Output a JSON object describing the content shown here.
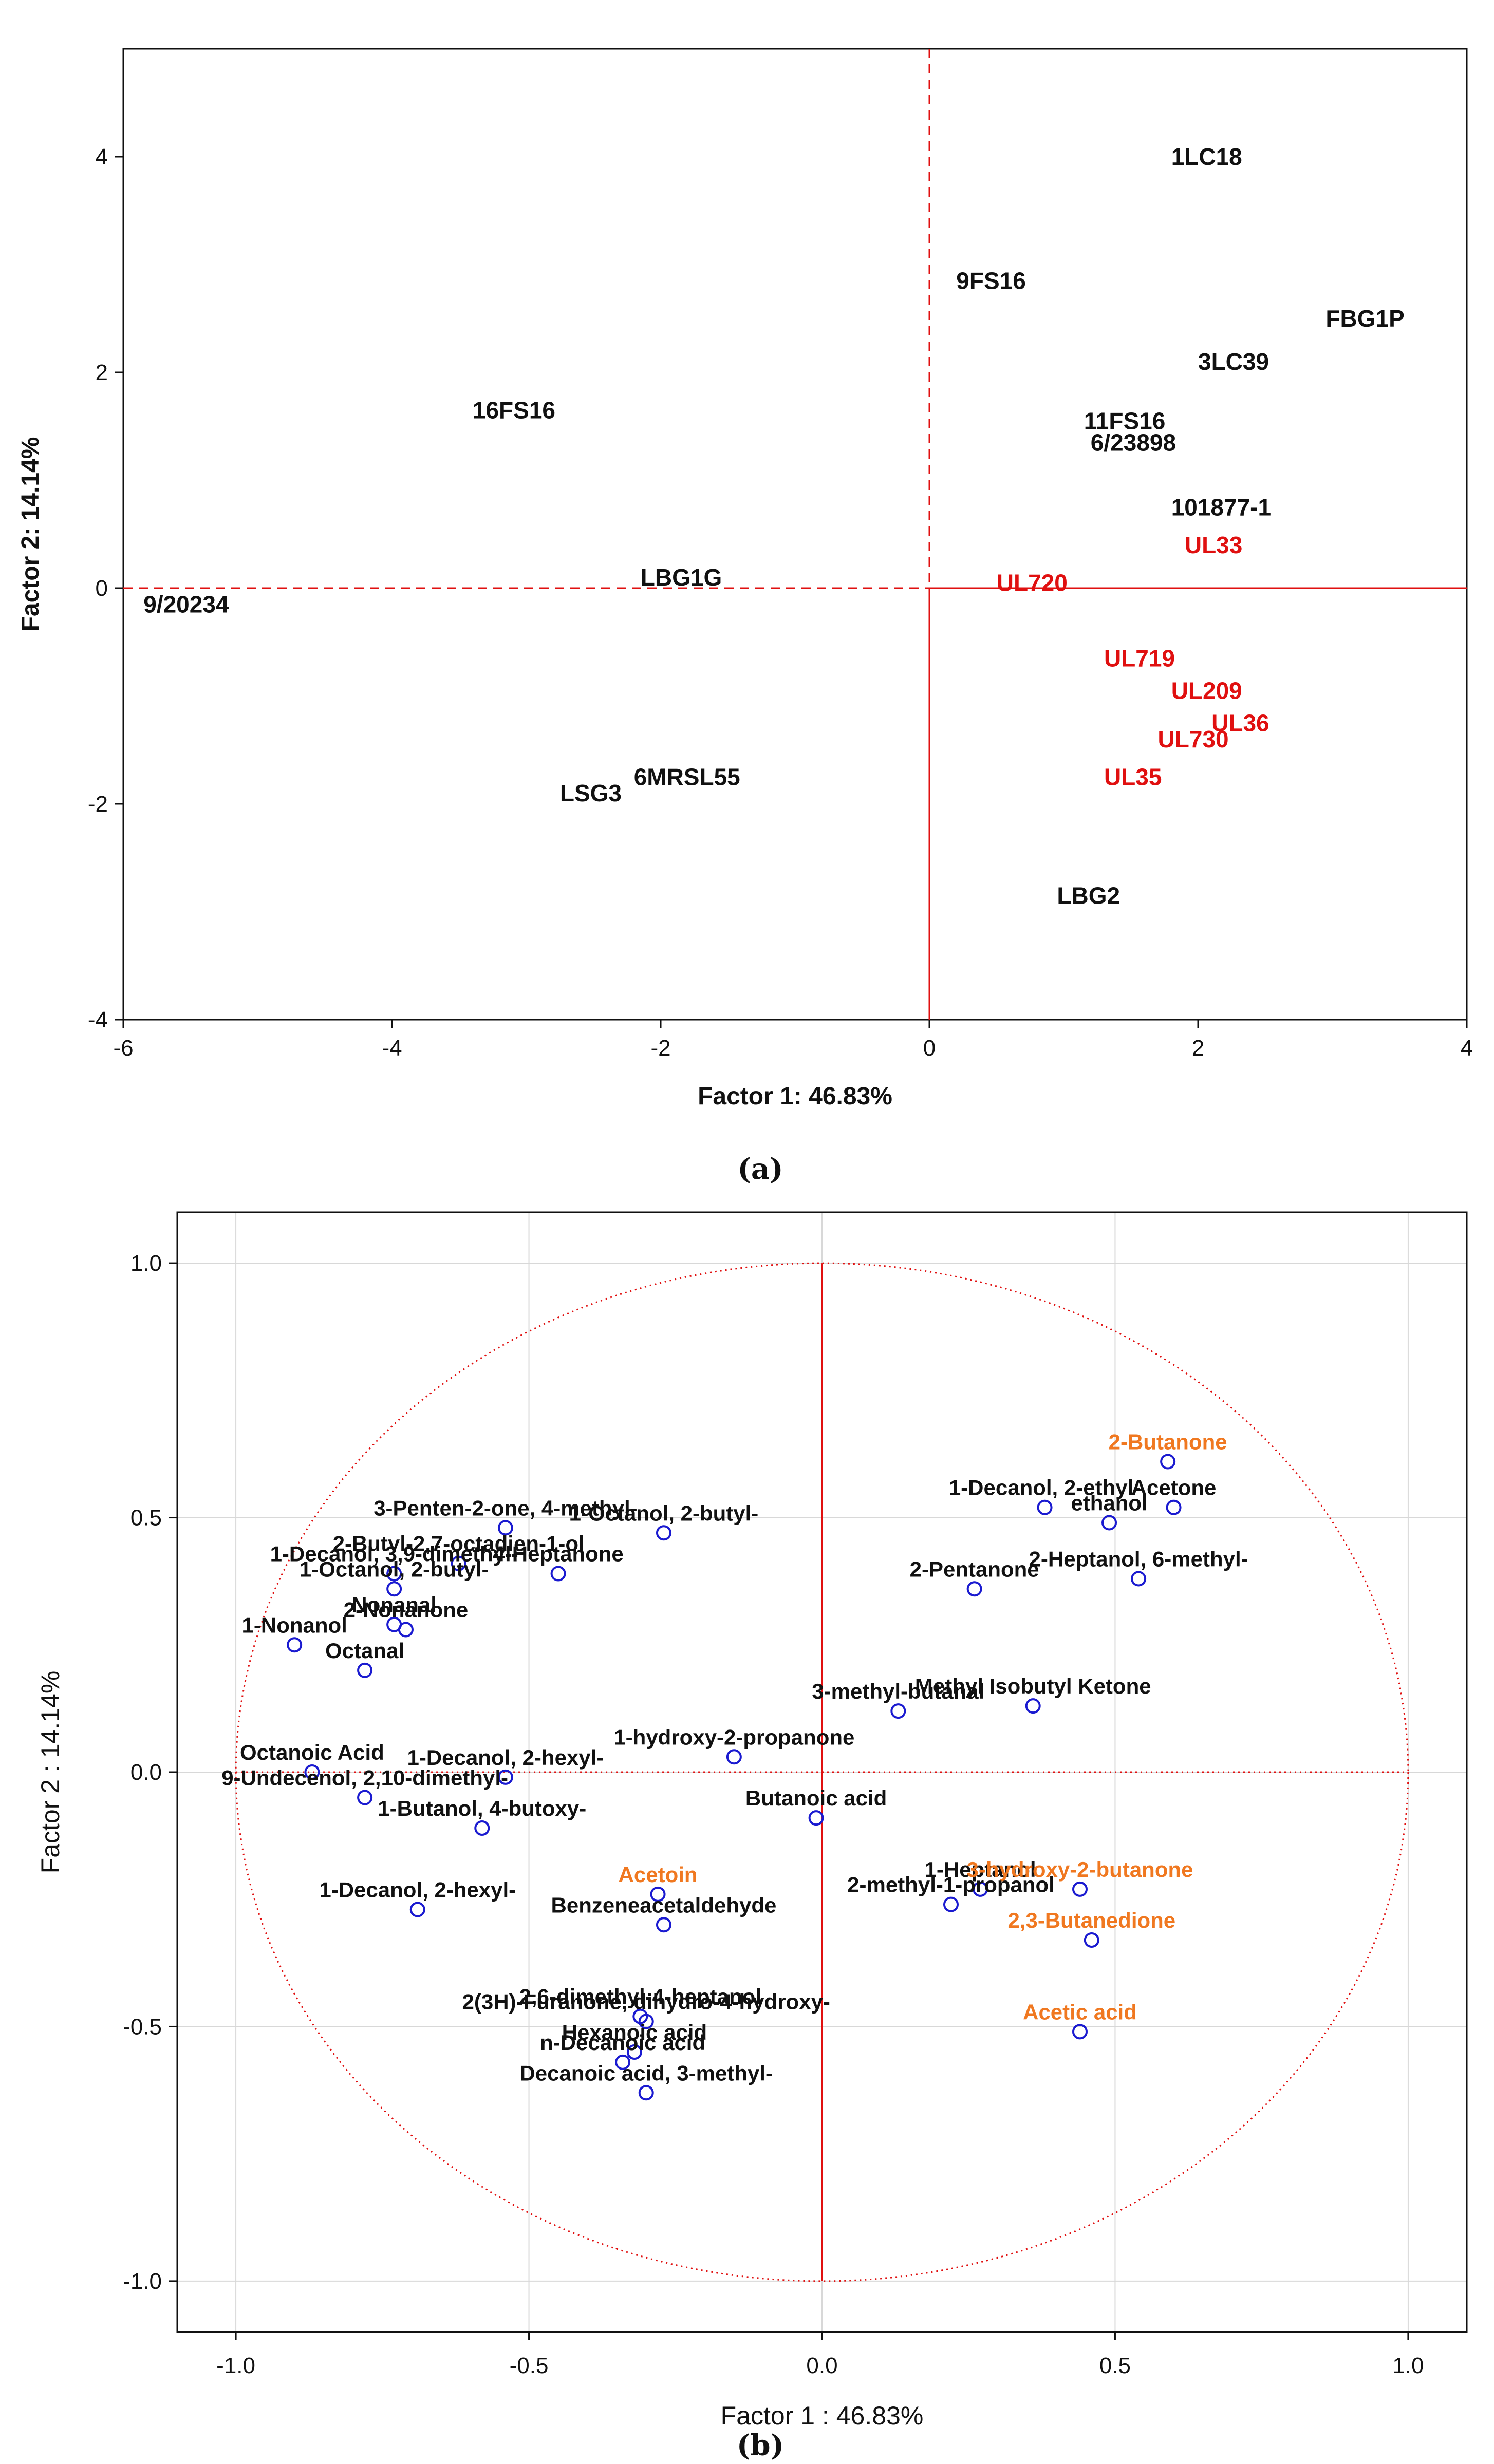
{
  "chart_data": [
    {
      "panel": "(a)",
      "type": "scatter",
      "xlabel": "Factor 1: 46.83%",
      "ylabel": "Factor 2: 14.14%",
      "xlim": [
        -6,
        4
      ],
      "ylim": [
        -4,
        5
      ],
      "xticks": [
        "-6",
        "-4",
        "-2",
        "0",
        "2",
        "4"
      ],
      "yticks": [
        "-4",
        "-2",
        "0",
        "2",
        "4"
      ],
      "colors": {
        "default": "#111111",
        "highlight": "#e01010",
        "axis": "#e01010"
      },
      "points": [
        {
          "label": "1LC18",
          "x": 1.8,
          "y": 4.0,
          "highlight": false
        },
        {
          "label": "9FS16",
          "x": 0.2,
          "y": 2.85,
          "highlight": false
        },
        {
          "label": "FBG1P",
          "x": 2.95,
          "y": 2.5,
          "highlight": false
        },
        {
          "label": "3LC39",
          "x": 2.0,
          "y": 2.1,
          "highlight": false
        },
        {
          "label": "16FS16",
          "x": -3.4,
          "y": 1.65,
          "highlight": false
        },
        {
          "label": "11FS16",
          "x": 1.15,
          "y": 1.55,
          "highlight": false
        },
        {
          "label": "6/23898",
          "x": 1.2,
          "y": 1.35,
          "highlight": false
        },
        {
          "label": "101877-1",
          "x": 1.8,
          "y": 0.75,
          "highlight": false
        },
        {
          "label": "UL33",
          "x": 1.9,
          "y": 0.4,
          "highlight": true
        },
        {
          "label": "LBG1G",
          "x": -2.15,
          "y": 0.1,
          "highlight": false
        },
        {
          "label": "UL720",
          "x": 0.5,
          "y": 0.05,
          "highlight": true
        },
        {
          "label": "9/20234",
          "x": -5.85,
          "y": -0.15,
          "highlight": false
        },
        {
          "label": "UL719",
          "x": 1.3,
          "y": -0.65,
          "highlight": true
        },
        {
          "label": "UL209",
          "x": 1.8,
          "y": -0.95,
          "highlight": true
        },
        {
          "label": "UL36",
          "x": 2.1,
          "y": -1.25,
          "highlight": true
        },
        {
          "label": "UL730",
          "x": 1.7,
          "y": -1.4,
          "highlight": true
        },
        {
          "label": "UL35",
          "x": 1.3,
          "y": -1.75,
          "highlight": true
        },
        {
          "label": "6MRSL55",
          "x": -2.2,
          "y": -1.75,
          "highlight": false
        },
        {
          "label": "LSG3",
          "x": -2.75,
          "y": -1.9,
          "highlight": false
        },
        {
          "label": "LBG2",
          "x": 0.95,
          "y": -2.85,
          "highlight": false
        }
      ]
    },
    {
      "panel": "(b)",
      "type": "scatter",
      "xlabel": "Factor 1 : 46.83%",
      "ylabel": "Factor 2 : 14.14%",
      "xlim": [
        -1.1,
        1.1
      ],
      "ylim": [
        -1.1,
        1.1
      ],
      "xticks": [
        "-1.0",
        "-0.5",
        "0.0",
        "0.5",
        "1.0"
      ],
      "yticks": [
        "-1.0",
        "-0.5",
        "0.0",
        "0.5",
        "1.0"
      ],
      "unit_circle": true,
      "grid": true,
      "colors": {
        "default": "#111111",
        "highlight": "#f07820",
        "marker": "#1a1ad0",
        "axis": "#e01010"
      },
      "points": [
        {
          "label": "2-Butanone",
          "x": 0.59,
          "y": 0.61,
          "highlight": true
        },
        {
          "label": "1-Decanol, 2-ethyl-",
          "x": 0.38,
          "y": 0.52,
          "highlight": false
        },
        {
          "label": "Acetone",
          "x": 0.6,
          "y": 0.52,
          "highlight": false
        },
        {
          "label": "ethanol",
          "x": 0.49,
          "y": 0.49,
          "highlight": false
        },
        {
          "label": "3-Penten-2-one, 4-methyl-",
          "x": -0.54,
          "y": 0.48,
          "highlight": false
        },
        {
          "label": "1-Octanol, 2-butyl-",
          "x": -0.27,
          "y": 0.47,
          "highlight": false
        },
        {
          "label": "2-Heptanol, 6-methyl-",
          "x": 0.54,
          "y": 0.38,
          "highlight": false
        },
        {
          "label": "2-Butyl-2,7-octadien-1-ol",
          "x": -0.62,
          "y": 0.41,
          "highlight": false
        },
        {
          "label": "4-Heptanone",
          "x": -0.45,
          "y": 0.39,
          "highlight": false
        },
        {
          "label": "1-Decanol, 3,9-dimethyl-",
          "x": -0.73,
          "y": 0.39,
          "highlight": false
        },
        {
          "label": "1-Octanol, 2-butyl-",
          "x": -0.73,
          "y": 0.36,
          "highlight": false
        },
        {
          "label": "2-Pentanone",
          "x": 0.26,
          "y": 0.36,
          "highlight": false
        },
        {
          "label": "Nonanal",
          "x": -0.73,
          "y": 0.29,
          "highlight": false
        },
        {
          "label": "2-Nonanone",
          "x": -0.71,
          "y": 0.28,
          "highlight": false
        },
        {
          "label": "1-Nonanol",
          "x": -0.9,
          "y": 0.25,
          "highlight": false
        },
        {
          "label": "Octanal",
          "x": -0.78,
          "y": 0.2,
          "highlight": false
        },
        {
          "label": "3-methyl-butanal",
          "x": 0.13,
          "y": 0.12,
          "highlight": false
        },
        {
          "label": "Methyl Isobutyl Ketone",
          "x": 0.36,
          "y": 0.13,
          "highlight": false
        },
        {
          "label": "1-hydroxy-2-propanone",
          "x": -0.15,
          "y": 0.03,
          "highlight": false
        },
        {
          "label": "Octanoic Acid",
          "x": -0.87,
          "y": 0.0,
          "highlight": false
        },
        {
          "label": "1-Decanol, 2-hexyl-",
          "x": -0.54,
          "y": -0.01,
          "highlight": false
        },
        {
          "label": "9-Undecenol, 2,10-dimethyl-",
          "x": -0.78,
          "y": -0.05,
          "highlight": false
        },
        {
          "label": "Butanoic acid",
          "x": -0.01,
          "y": -0.09,
          "highlight": false
        },
        {
          "label": "1-Butanol, 4-butoxy-",
          "x": -0.58,
          "y": -0.11,
          "highlight": false
        },
        {
          "label": "Acetoin",
          "x": -0.28,
          "y": -0.24,
          "highlight": true
        },
        {
          "label": "1-Heptanol",
          "x": 0.27,
          "y": -0.23,
          "highlight": false
        },
        {
          "label": "3-hydroxy-2-butanone",
          "x": 0.44,
          "y": -0.23,
          "highlight": true
        },
        {
          "label": "2-methyl-1-propanol",
          "x": 0.22,
          "y": -0.26,
          "highlight": false
        },
        {
          "label": "1-Decanol, 2-hexyl-",
          "x": -0.69,
          "y": -0.27,
          "highlight": false
        },
        {
          "label": "Benzeneacetaldehyde",
          "x": -0.27,
          "y": -0.3,
          "highlight": false
        },
        {
          "label": "2,3-Butanedione",
          "x": 0.46,
          "y": -0.33,
          "highlight": true
        },
        {
          "label": "2,6-dimethyl-4-heptanol",
          "x": -0.31,
          "y": -0.48,
          "highlight": false
        },
        {
          "label": "Acetic acid",
          "x": 0.44,
          "y": -0.51,
          "highlight": true
        },
        {
          "label": "2(3H)-Furanone, dihydro-4-hydroxy-",
          "x": -0.3,
          "y": -0.49,
          "highlight": false
        },
        {
          "label": "Hexanoic acid",
          "x": -0.32,
          "y": -0.55,
          "highlight": false
        },
        {
          "label": "n-Decanoic acid",
          "x": -0.34,
          "y": -0.57,
          "highlight": false
        },
        {
          "label": "Decanoic acid, 3-methyl-",
          "x": -0.3,
          "y": -0.63,
          "highlight": false
        }
      ]
    }
  ]
}
